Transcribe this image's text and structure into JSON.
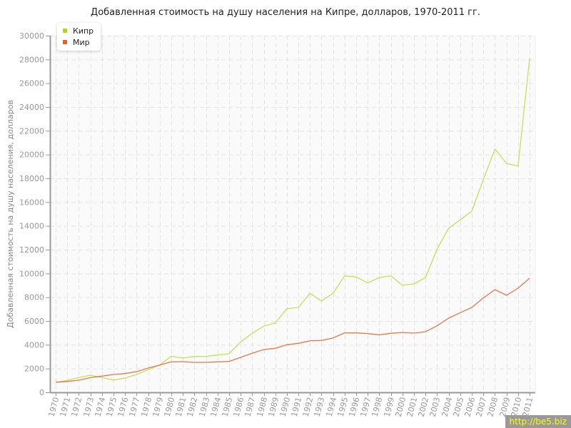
{
  "chart_data": {
    "type": "line",
    "title": "Добавленная стоимость на душу населения на Кипре, долларов, 1970-2011 гг.",
    "xlabel": "",
    "ylabel": "Добавленная стоимость на душу населения, долларов",
    "ylim": [
      0,
      30000
    ],
    "yticks": [
      "0",
      "2000",
      "4000",
      "6000",
      "8000",
      "10000",
      "12000",
      "14000",
      "16000",
      "18000",
      "20000",
      "22000",
      "24000",
      "26000",
      "28000",
      "30000"
    ],
    "x": [
      "1970",
      "1971",
      "1972",
      "1973",
      "1974",
      "1975",
      "1976",
      "1977",
      "1978",
      "1979",
      "1980",
      "1981",
      "1982",
      "1983",
      "1984",
      "1985",
      "1986",
      "1987",
      "1988",
      "1989",
      "1990",
      "1991",
      "1992",
      "1993",
      "1994",
      "1995",
      "1996",
      "1997",
      "1998",
      "1999",
      "2000",
      "2001",
      "2002",
      "2003",
      "2004",
      "2005",
      "2006",
      "2007",
      "2008",
      "2009",
      "2010",
      "2011"
    ],
    "grid": true,
    "legend_position": "top-left",
    "series": [
      {
        "name": "Кипр",
        "color": "#c5e05a",
        "legend_color": "#b5d31a",
        "values": [
          840,
          1000,
          1250,
          1440,
          1250,
          1030,
          1200,
          1500,
          1900,
          2300,
          3040,
          2880,
          3020,
          3020,
          3140,
          3240,
          4240,
          4960,
          5560,
          5840,
          7040,
          7140,
          8340,
          7680,
          8340,
          9800,
          9700,
          9200,
          9660,
          9800,
          9000,
          9120,
          9660,
          12060,
          13800,
          14500,
          15240,
          17900,
          20460,
          19260,
          19020,
          28080
        ]
      },
      {
        "name": "Мир",
        "color": "#e8774c",
        "legend_color": "#e0622d",
        "values": [
          840,
          920,
          1020,
          1240,
          1360,
          1500,
          1580,
          1740,
          2040,
          2300,
          2560,
          2580,
          2520,
          2520,
          2560,
          2600,
          2940,
          3280,
          3600,
          3700,
          4000,
          4120,
          4340,
          4360,
          4580,
          5000,
          5000,
          4940,
          4840,
          4960,
          5040,
          4980,
          5100,
          5600,
          6240,
          6700,
          7140,
          7940,
          8640,
          8160,
          8760,
          9600
        ]
      }
    ]
  },
  "watermark": "http://be5.biz"
}
